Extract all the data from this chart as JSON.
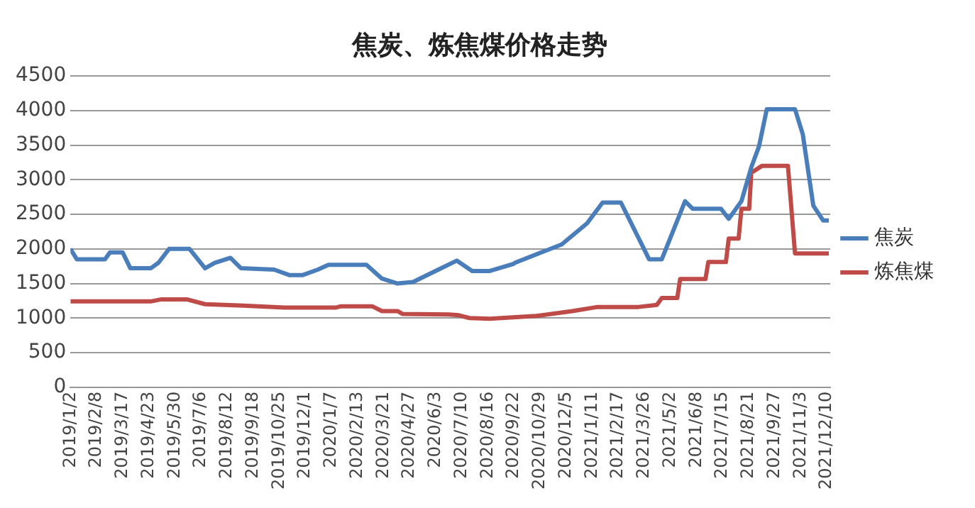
{
  "chart_data": {
    "type": "line",
    "title": "焦炭、炼焦煤价格走势",
    "xlim": [
      "2019-01-02",
      "2021-12-15"
    ],
    "xticks": [
      {
        "value": "2019-01-02",
        "label": "2019/1/2"
      },
      {
        "value": "2019-02-08",
        "label": "2019/2/8"
      },
      {
        "value": "2019-03-17",
        "label": "2019/3/17"
      },
      {
        "value": "2019-04-23",
        "label": "2019/4/23"
      },
      {
        "value": "2019-05-30",
        "label": "2019/5/30"
      },
      {
        "value": "2019-07-06",
        "label": "2019/7/6"
      },
      {
        "value": "2019-08-12",
        "label": "2019/8/12"
      },
      {
        "value": "2019-09-18",
        "label": "2019/9/18"
      },
      {
        "value": "2019-10-25",
        "label": "2019/10/25"
      },
      {
        "value": "2019-12-01",
        "label": "2019/12/1"
      },
      {
        "value": "2020-01-07",
        "label": "2020/1/7"
      },
      {
        "value": "2020-02-13",
        "label": "2020/2/13"
      },
      {
        "value": "2020-03-21",
        "label": "2020/3/21"
      },
      {
        "value": "2020-04-27",
        "label": "2020/4/27"
      },
      {
        "value": "2020-06-03",
        "label": "2020/6/3"
      },
      {
        "value": "2020-07-10",
        "label": "2020/7/10"
      },
      {
        "value": "2020-08-16",
        "label": "2020/8/16"
      },
      {
        "value": "2020-09-22",
        "label": "2020/9/22"
      },
      {
        "value": "2020-10-29",
        "label": "2020/10/29"
      },
      {
        "value": "2020-12-05",
        "label": "2020/12/5"
      },
      {
        "value": "2021-01-11",
        "label": "2021/1/11"
      },
      {
        "value": "2021-02-17",
        "label": "2021/2/17"
      },
      {
        "value": "2021-03-26",
        "label": "2021/3/26"
      },
      {
        "value": "2021-05-02",
        "label": "2021/5/2"
      },
      {
        "value": "2021-06-08",
        "label": "2021/6/8"
      },
      {
        "value": "2021-07-15",
        "label": "2021/7/15"
      },
      {
        "value": "2021-08-21",
        "label": "2021/8/21"
      },
      {
        "value": "2021-09-27",
        "label": "2021/9/27"
      },
      {
        "value": "2021-11-03",
        "label": "2021/11/3"
      },
      {
        "value": "2021-12-10",
        "label": "2021/12/10"
      }
    ],
    "ylim": [
      0,
      4500
    ],
    "yticks": [
      0,
      500,
      1000,
      1500,
      2000,
      2500,
      3000,
      3500,
      4000,
      4500
    ],
    "grid": "y",
    "legend": "right",
    "marker": "none",
    "line_style": "solid",
    "series": [
      {
        "name": "焦炭",
        "color": "#4a7ebb",
        "x": [
          "2019-01-02",
          "2019-01-11",
          "2019-02-20",
          "2019-02-27",
          "2019-03-17",
          "2019-03-28",
          "2019-04-26",
          "2019-05-07",
          "2019-05-22",
          "2019-06-20",
          "2019-07-12",
          "2019-07-26",
          "2019-08-17",
          "2019-09-01",
          "2019-10-18",
          "2019-11-09",
          "2019-11-27",
          "2019-12-19",
          "2020-01-03",
          "2020-02-26",
          "2020-03-19",
          "2020-04-10",
          "2020-05-02",
          "2020-06-07",
          "2020-07-03",
          "2020-07-25",
          "2020-08-19",
          "2020-09-21",
          "2020-09-24",
          "2020-11-29",
          "2021-01-04",
          "2021-01-26",
          "2021-02-21",
          "2021-04-02",
          "2021-04-20",
          "2021-05-23",
          "2021-06-03",
          "2021-07-13",
          "2021-07-24",
          "2021-08-11",
          "2021-08-25",
          "2021-09-05",
          "2021-09-16",
          "2021-10-26",
          "2021-11-06",
          "2021-11-21",
          "2021-12-05",
          "2021-12-13"
        ],
        "values": [
          2000,
          1850,
          1850,
          1950,
          1950,
          1720,
          1720,
          1800,
          2000,
          2000,
          1720,
          1800,
          1870,
          1720,
          1700,
          1620,
          1620,
          1700,
          1770,
          1770,
          1570,
          1500,
          1520,
          1700,
          1830,
          1680,
          1680,
          1780,
          1800,
          2065,
          2370,
          2670,
          2670,
          1850,
          1850,
          2690,
          2580,
          2580,
          2435,
          2690,
          3180,
          3485,
          4020,
          4020,
          3660,
          2625,
          2410,
          2410
        ]
      },
      {
        "name": "炼焦煤",
        "color": "#be4b48",
        "x": [
          "2019-01-02",
          "2019-04-26",
          "2019-05-11",
          "2019-06-16",
          "2019-07-12",
          "2019-09-04",
          "2019-11-02",
          "2020-01-13",
          "2020-01-21",
          "2020-03-05",
          "2020-03-19",
          "2020-04-10",
          "2020-04-17",
          "2020-06-22",
          "2020-07-06",
          "2020-07-21",
          "2020-08-19",
          "2020-10-24",
          "2020-12-14",
          "2021-01-19",
          "2021-03-18",
          "2021-04-13",
          "2021-04-20",
          "2021-05-12",
          "2021-05-16",
          "2021-06-21",
          "2021-06-25",
          "2021-07-20",
          "2021-07-24",
          "2021-08-07",
          "2021-08-11",
          "2021-08-22",
          "2021-08-25",
          "2021-09-09",
          "2021-10-16",
          "2021-10-26",
          "2021-12-13"
        ],
        "values": [
          1240,
          1240,
          1270,
          1270,
          1200,
          1180,
          1150,
          1150,
          1170,
          1170,
          1100,
          1100,
          1060,
          1050,
          1040,
          1000,
          990,
          1030,
          1100,
          1160,
          1160,
          1190,
          1290,
          1290,
          1565,
          1565,
          1810,
          1810,
          2150,
          2150,
          2580,
          2580,
          3100,
          3200,
          3200,
          1935,
          1935
        ]
      }
    ]
  }
}
